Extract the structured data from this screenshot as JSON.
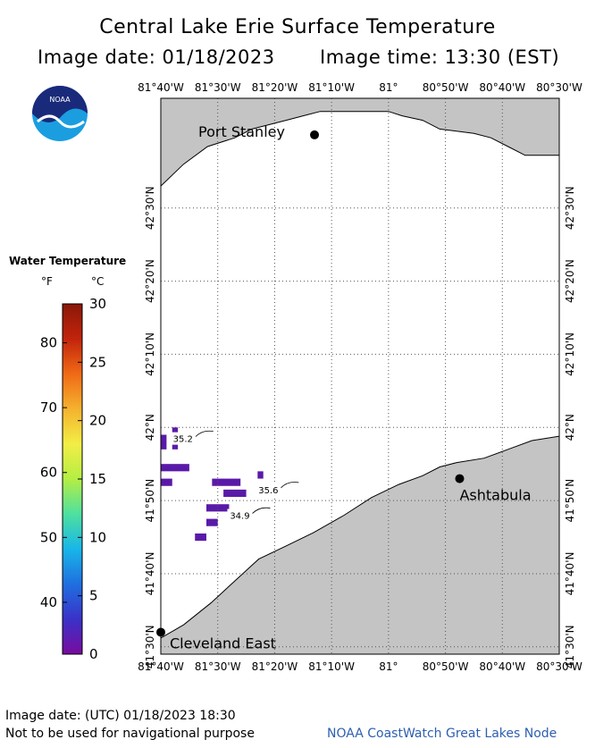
{
  "title": "Central Lake Erie Surface Temperature",
  "image_date": "Image date: 01/18/2023",
  "image_time": "Image time: 13:30 (EST)",
  "logo_text": "NOAA",
  "legend": {
    "title": "Water Temperature",
    "unit_f": "°F",
    "unit_c": "°C",
    "f_ticks": [
      {
        "value": 80,
        "label": "80"
      },
      {
        "value": 70,
        "label": "70"
      },
      {
        "value": 60,
        "label": "60"
      },
      {
        "value": 50,
        "label": "50"
      },
      {
        "value": 40,
        "label": "40"
      }
    ],
    "c_ticks": [
      {
        "value": 30,
        "label": "30"
      },
      {
        "value": 25,
        "label": "25"
      },
      {
        "value": 20,
        "label": "20"
      },
      {
        "value": 15,
        "label": "15"
      },
      {
        "value": 10,
        "label": "10"
      },
      {
        "value": 5,
        "label": "5"
      },
      {
        "value": 0,
        "label": "0"
      }
    ],
    "c_min": 0,
    "c_max": 30,
    "colors": [
      "#7a0aa0",
      "#3a32c8",
      "#1f6fe0",
      "#18b6e8",
      "#4ee0a0",
      "#b4ee44",
      "#f2ee46",
      "#f4b22e",
      "#f06a16",
      "#c2240c",
      "#8a1808"
    ]
  },
  "map": {
    "lon_min": -81.6667,
    "lon_max": -80.5,
    "lat_min": 41.4833,
    "lat_max": 42.75,
    "lon_labels": [
      {
        "lon": -81.6667,
        "label": "81°40'W"
      },
      {
        "lon": -81.5,
        "label": "81°30'W"
      },
      {
        "lon": -81.3333,
        "label": "81°20'W"
      },
      {
        "lon": -81.1667,
        "label": "81°10'W"
      },
      {
        "lon": -81.0,
        "label": "81°"
      },
      {
        "lon": -80.8333,
        "label": "80°50'W"
      },
      {
        "lon": -80.6667,
        "label": "80°40'W"
      },
      {
        "lon": -80.5,
        "label": "80°30'W"
      }
    ],
    "lat_labels": [
      {
        "lat": 42.5,
        "label": "42°30'N"
      },
      {
        "lat": 42.3333,
        "label": "42°20'N"
      },
      {
        "lat": 42.1667,
        "label": "42°10'N"
      },
      {
        "lat": 42.0,
        "label": "42°N"
      },
      {
        "lat": 41.8333,
        "label": "41°50'N"
      },
      {
        "lat": 41.6667,
        "label": "41°40'N"
      },
      {
        "lat": 41.5,
        "label": "41°30'N"
      }
    ],
    "cities": [
      {
        "name": "Port Stanley",
        "lon": -81.2167,
        "lat": 42.6667,
        "label_dx": -130,
        "label_dy": -12
      },
      {
        "name": "Ashtabula",
        "lon": -80.7917,
        "lat": 41.8833,
        "label_dx": 0,
        "label_dy": 10
      },
      {
        "name": "Cleveland East",
        "lon": -81.6667,
        "lat": 41.5333,
        "label_dx": 10,
        "label_dy": 4
      }
    ],
    "isotherms": [
      {
        "label": "35.2",
        "lon": -81.6333,
        "lat": 41.9667
      },
      {
        "label": "35.6",
        "lon": -81.3833,
        "lat": 41.85
      },
      {
        "label": "34.9",
        "lon": -81.4667,
        "lat": 41.7917
      }
    ],
    "north_shore": [
      [
        -81.6667,
        42.55
      ],
      [
        -81.6,
        42.6
      ],
      [
        -81.53,
        42.64
      ],
      [
        -81.45,
        42.66
      ],
      [
        -81.4,
        42.68
      ],
      [
        -81.35,
        42.69
      ],
      [
        -81.3,
        42.7
      ],
      [
        -81.25,
        42.71
      ],
      [
        -81.2,
        42.72
      ],
      [
        -81.0,
        42.72
      ],
      [
        -80.96,
        42.71
      ],
      [
        -80.9,
        42.7
      ],
      [
        -80.85,
        42.68
      ],
      [
        -80.75,
        42.67
      ],
      [
        -80.7,
        42.66
      ],
      [
        -80.65,
        42.64
      ],
      [
        -80.6,
        42.62
      ],
      [
        -80.5,
        42.62
      ]
    ],
    "south_shore": [
      [
        -81.6667,
        41.52
      ],
      [
        -81.6,
        41.55
      ],
      [
        -81.52,
        41.6
      ],
      [
        -81.45,
        41.65
      ],
      [
        -81.38,
        41.7
      ],
      [
        -81.3,
        41.73
      ],
      [
        -81.22,
        41.76
      ],
      [
        -81.13,
        41.8
      ],
      [
        -81.05,
        41.84
      ],
      [
        -80.97,
        41.87
      ],
      [
        -80.9,
        41.89
      ],
      [
        -80.85,
        41.91
      ],
      [
        -80.8,
        41.92
      ],
      [
        -80.72,
        41.93
      ],
      [
        -80.65,
        41.95
      ],
      [
        -80.58,
        41.97
      ],
      [
        -80.5,
        41.98
      ]
    ],
    "temp_region_cells": [
      [
        -81.6833,
        41.9833,
        2,
        2
      ],
      [
        -81.6333,
        42.0,
        1,
        3
      ],
      [
        -81.6833,
        41.9167,
        6,
        1
      ],
      [
        -81.6833,
        41.8833,
        3,
        1
      ],
      [
        -81.5167,
        41.8833,
        5,
        1
      ],
      [
        -81.3833,
        41.9,
        1,
        1
      ],
      [
        -81.4833,
        41.8583,
        4,
        1
      ],
      [
        -81.5333,
        41.825,
        4,
        1
      ],
      [
        -81.5333,
        41.7917,
        2,
        1
      ],
      [
        -81.5667,
        41.7583,
        2,
        1
      ]
    ]
  },
  "footer": {
    "utc_date": "Image date: (UTC) 01/18/2023  18:30",
    "nav_warning": "Not to be used for navigational purpose",
    "node": "NOAA CoastWatch Great Lakes Node"
  }
}
